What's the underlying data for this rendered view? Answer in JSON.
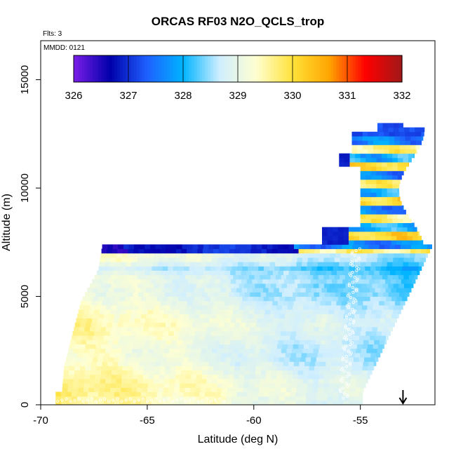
{
  "chart_data": {
    "type": "heatmap",
    "title": "ORCAS RF03 N2O_QCLS_trop",
    "flights_note": "Flts: 3",
    "date_note": "MMDD: 0121",
    "xlabel": "Latitude (deg N)",
    "ylabel": "Altitude (m)",
    "xlim": [
      -70,
      -51.5
    ],
    "ylim": [
      0,
      16800
    ],
    "x_ticks": [
      -70,
      -65,
      -60,
      -55
    ],
    "y_ticks": [
      0,
      5000,
      10000,
      15000
    ],
    "x_tick_labels": [
      "-70",
      "-65",
      "-60",
      "-55"
    ],
    "y_tick_labels": [
      "0",
      "5000",
      "10000",
      "15000"
    ],
    "colorbar": {
      "min": 326,
      "max": 332,
      "ticks": [
        326,
        327,
        328,
        329,
        330,
        331,
        332
      ],
      "tick_labels": [
        "326",
        "327",
        "328",
        "329",
        "330",
        "331",
        "332"
      ],
      "colors": [
        "#7a1ee6",
        "#0000aa",
        "#1f5fff",
        "#00b4ff",
        "#cfeeff",
        "#ffffd0",
        "#ffe23a",
        "#ffa500",
        "#ff0000",
        "#a01818"
      ]
    },
    "arrow_marker_latitude": -53,
    "grid": false,
    "legend": "colorbar top-inside"
  }
}
